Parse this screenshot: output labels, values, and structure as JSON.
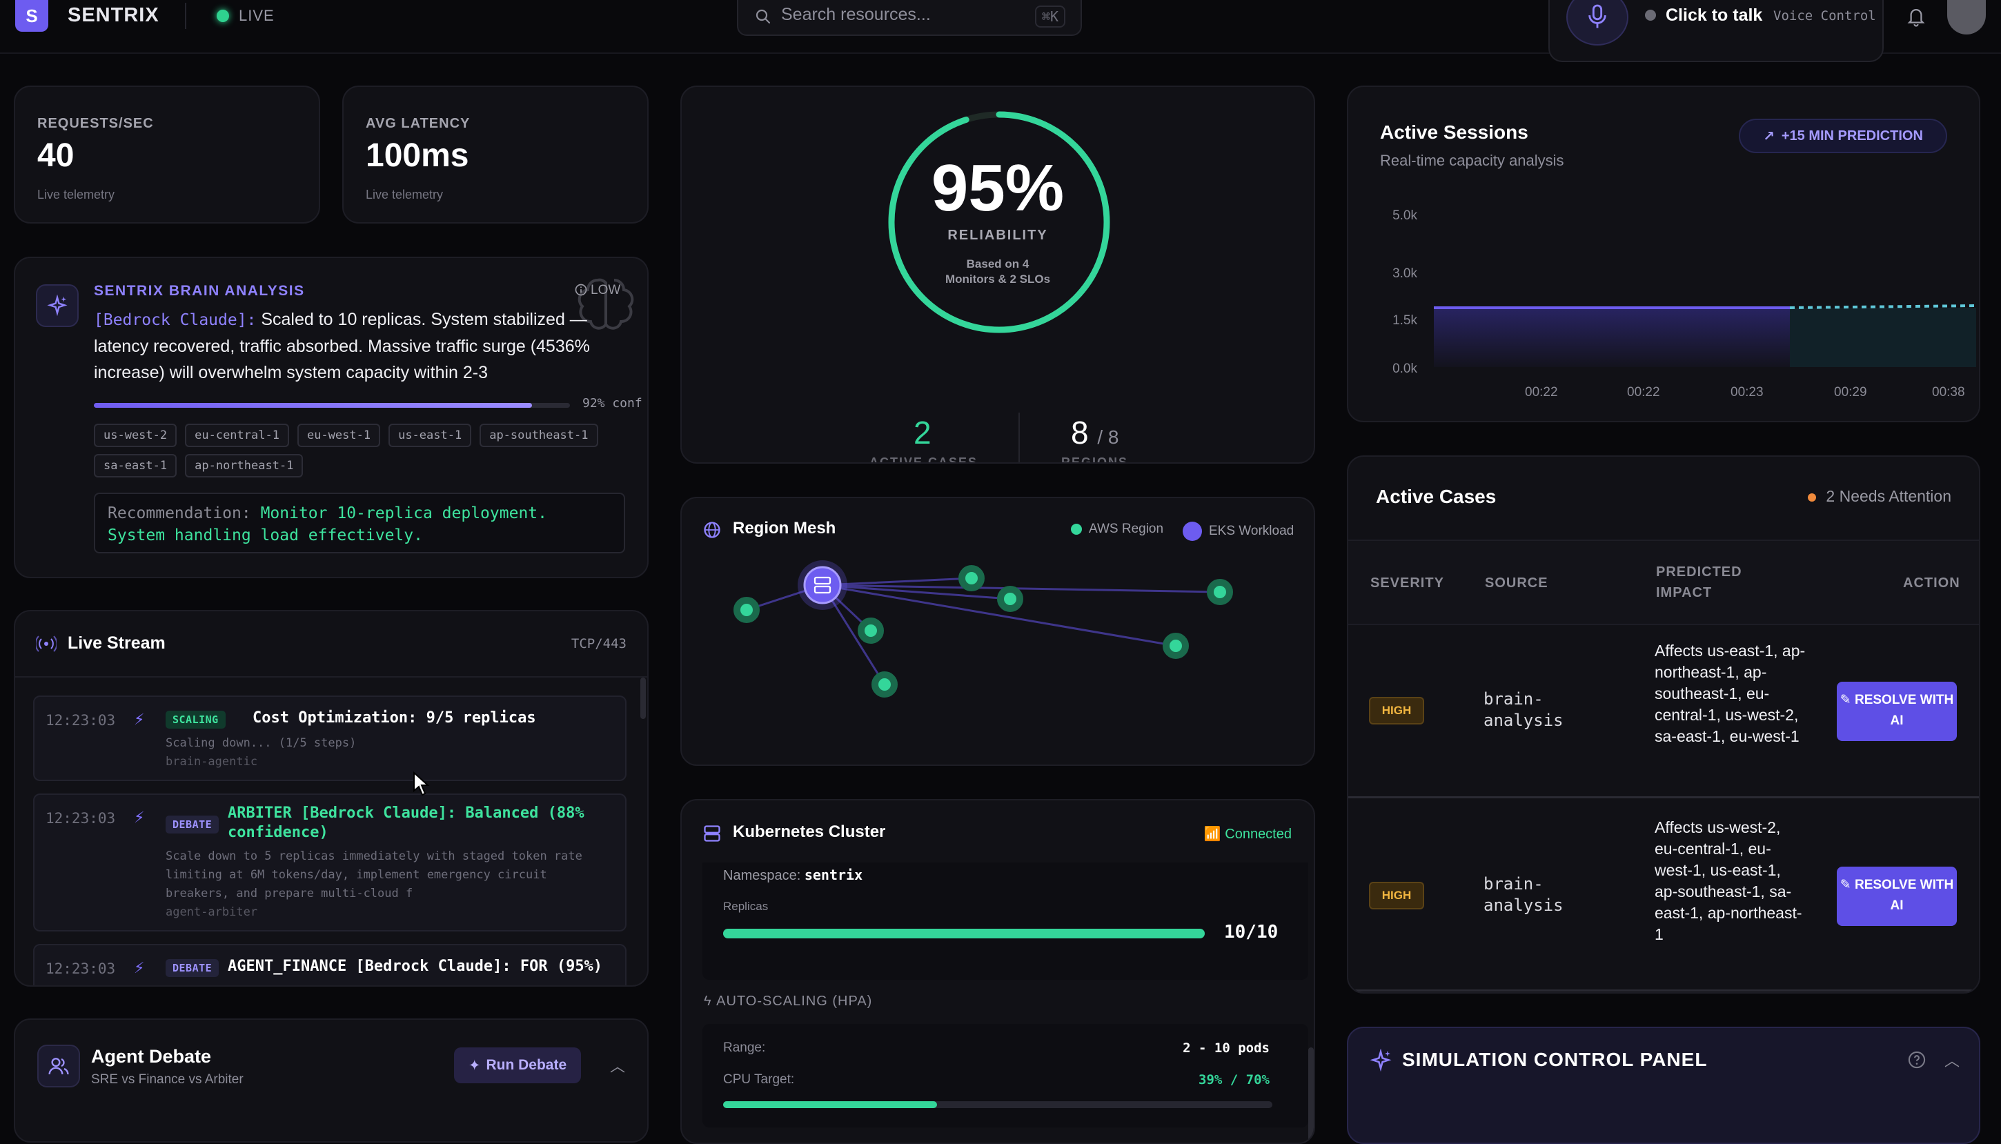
{
  "header": {
    "logo_letter": "S",
    "brand": "SENTRIX",
    "live_label": "LIVE",
    "search_placeholder": "Search resources...",
    "search_shortcut": "⌘K",
    "voice_cta": "Click to talk",
    "voice_label": "Voice Control"
  },
  "metrics": [
    {
      "label": "REQUESTS/SEC",
      "value": "40",
      "sub": "Live telemetry"
    },
    {
      "label": "AVG LATENCY",
      "value": "100ms",
      "sub": "Live telemetry"
    }
  ],
  "brain": {
    "title": "SENTRIX BRAIN ANALYSIS",
    "severity": "LOW",
    "source_tag": "[Bedrock Claude]:",
    "text": " Scaled to 10 replicas. System stabilized — latency recovered, traffic absorbed. Massive traffic surge (4536% increase) will overwhelm system capacity within 2-3",
    "confidence": 92,
    "confidence_label": "92% conf",
    "regions": [
      "us-west-2",
      "eu-central-1",
      "eu-west-1",
      "us-east-1",
      "ap-southeast-1",
      "sa-east-1",
      "ap-northeast-1"
    ],
    "recommendation_label": "Recommendation:",
    "recommendation": " Monitor 10-replica deployment. System handling load effectively."
  },
  "live_stream": {
    "title": "Live Stream",
    "port": "TCP/443",
    "events": [
      {
        "time": "12:23:03",
        "badge": "SCALING",
        "headline": "Cost Optimization: 9/5 replicas",
        "body": [
          "Scaling down... (1/5 steps)",
          "brain-agentic"
        ]
      },
      {
        "time": "12:23:03",
        "badge": "DEBATE",
        "headline": "ARBITER [Bedrock Claude]: Balanced (88%",
        "headline2": "confidence)",
        "body": [
          "Scale down to 5 replicas immediately with staged token rate",
          "limiting at 6M tokens/day, implement emergency circuit",
          "breakers, and prepare multi-cloud f",
          "agent-arbiter"
        ]
      },
      {
        "time": "12:23:03",
        "badge": "DEBATE",
        "headline": "AGENT_FINANCE [Bedrock Claude]: FOR (95%)",
        "body": []
      }
    ]
  },
  "agent_debate": {
    "title": "Agent Debate",
    "subtitle": "SRE vs Finance vs Arbiter",
    "button": "Run Debate"
  },
  "reliability": {
    "value": "95%",
    "percent": 95,
    "label": "RELIABILITY",
    "note_line1": "Based on 4",
    "note_line2": "Monitors & 2 SLOs",
    "active_cases_value": "2",
    "active_cases_label": "ACTIVE CASES",
    "regions_value": "8",
    "regions_total": "/ 8",
    "regions_label": "REGIONS"
  },
  "region_mesh": {
    "title": "Region Mesh",
    "legend_aws": "AWS Region",
    "legend_eks": "EKS Workload"
  },
  "kubernetes": {
    "title": "Kubernetes Cluster",
    "status": "Connected",
    "namespace_label": "Namespace:",
    "namespace": "sentrix",
    "replicas_label": "Replicas",
    "replicas_value": "10/10",
    "replicas_fraction": 1.0,
    "hpa_title": "AUTO-SCALING (HPA)",
    "range_label": "Range:",
    "range_value": "2 - 10 pods",
    "cpu_label": "CPU Target:",
    "cpu_value": "39% / 70%",
    "cpu_fraction": 0.39
  },
  "active_sessions": {
    "title": "Active Sessions",
    "subtitle": "Real-time capacity analysis",
    "prediction": "+15 MIN PREDICTION",
    "y_ticks": [
      "5.0k",
      "3.0k",
      "1.5k",
      "0.0k"
    ],
    "x_ticks": [
      "00:22",
      "00:22",
      "00:23",
      "00:29",
      "00:38"
    ]
  },
  "active_cases": {
    "title": "Active Cases",
    "attention": "2 Needs Attention",
    "columns": [
      "SEVERITY",
      "SOURCE",
      "PREDICTED IMPACT",
      "ACTION"
    ],
    "rows": [
      {
        "severity": "HIGH",
        "source": "brain-analysis",
        "impact": "Affects us-east-1, ap-northeast-1, ap-southeast-1, eu-central-1, us-west-2, sa-east-1, eu-west-1",
        "action": "RESOLVE WITH AI"
      },
      {
        "severity": "HIGH",
        "source": "brain-analysis",
        "impact": "Affects us-west-2, eu-central-1, eu-west-1, us-east-1, ap-southeast-1, sa-east-1, ap-northeast-1",
        "action": "RESOLVE WITH AI"
      }
    ]
  },
  "simulation": {
    "title": "SIMULATION CONTROL PANEL"
  },
  "colors": {
    "accent": "#6d5cf0",
    "green": "#34d69a",
    "warning": "#f2b640"
  }
}
